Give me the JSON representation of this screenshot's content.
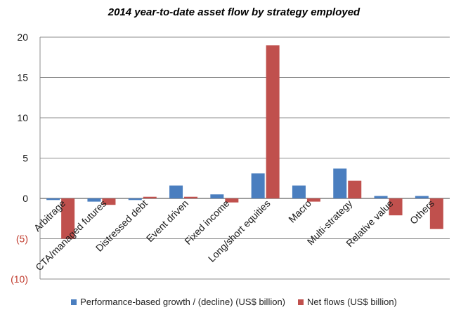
{
  "chart_data": {
    "type": "bar",
    "title": "2014 year-to-date asset flow by strategy employed",
    "categories": [
      "Arbitrage",
      "CTA/managed futures",
      "Distressed debt",
      "Event driven",
      "Fixed income",
      "Long/short equities",
      "Macro",
      "Multi-strategy",
      "Relative value",
      "Others"
    ],
    "series": [
      {
        "name": "Performance-based growth / (decline) (US$ billion)",
        "color": "#4a7ebf",
        "values": [
          -0.2,
          -0.4,
          -0.2,
          1.6,
          0.5,
          3.1,
          1.6,
          3.7,
          0.3,
          0.3
        ]
      },
      {
        "name": "Net flows (US$ billion)",
        "color": "#c0504d",
        "values": [
          -5.0,
          -0.8,
          0.2,
          0.2,
          -0.5,
          19.0,
          -0.4,
          2.2,
          -2.1,
          -3.8
        ]
      }
    ],
    "y_ticks": [
      {
        "value": 20,
        "label": "20"
      },
      {
        "value": 15,
        "label": "15"
      },
      {
        "value": 10,
        "label": "10"
      },
      {
        "value": 5,
        "label": "5"
      },
      {
        "value": 0,
        "label": "0"
      },
      {
        "value": -5,
        "label": "(5)"
      },
      {
        "value": -10,
        "label": "(10)"
      }
    ],
    "negative_label_color": "#c0392b",
    "ylim": [
      -10,
      20
    ],
    "grid": true,
    "legend_position": "bottom"
  }
}
